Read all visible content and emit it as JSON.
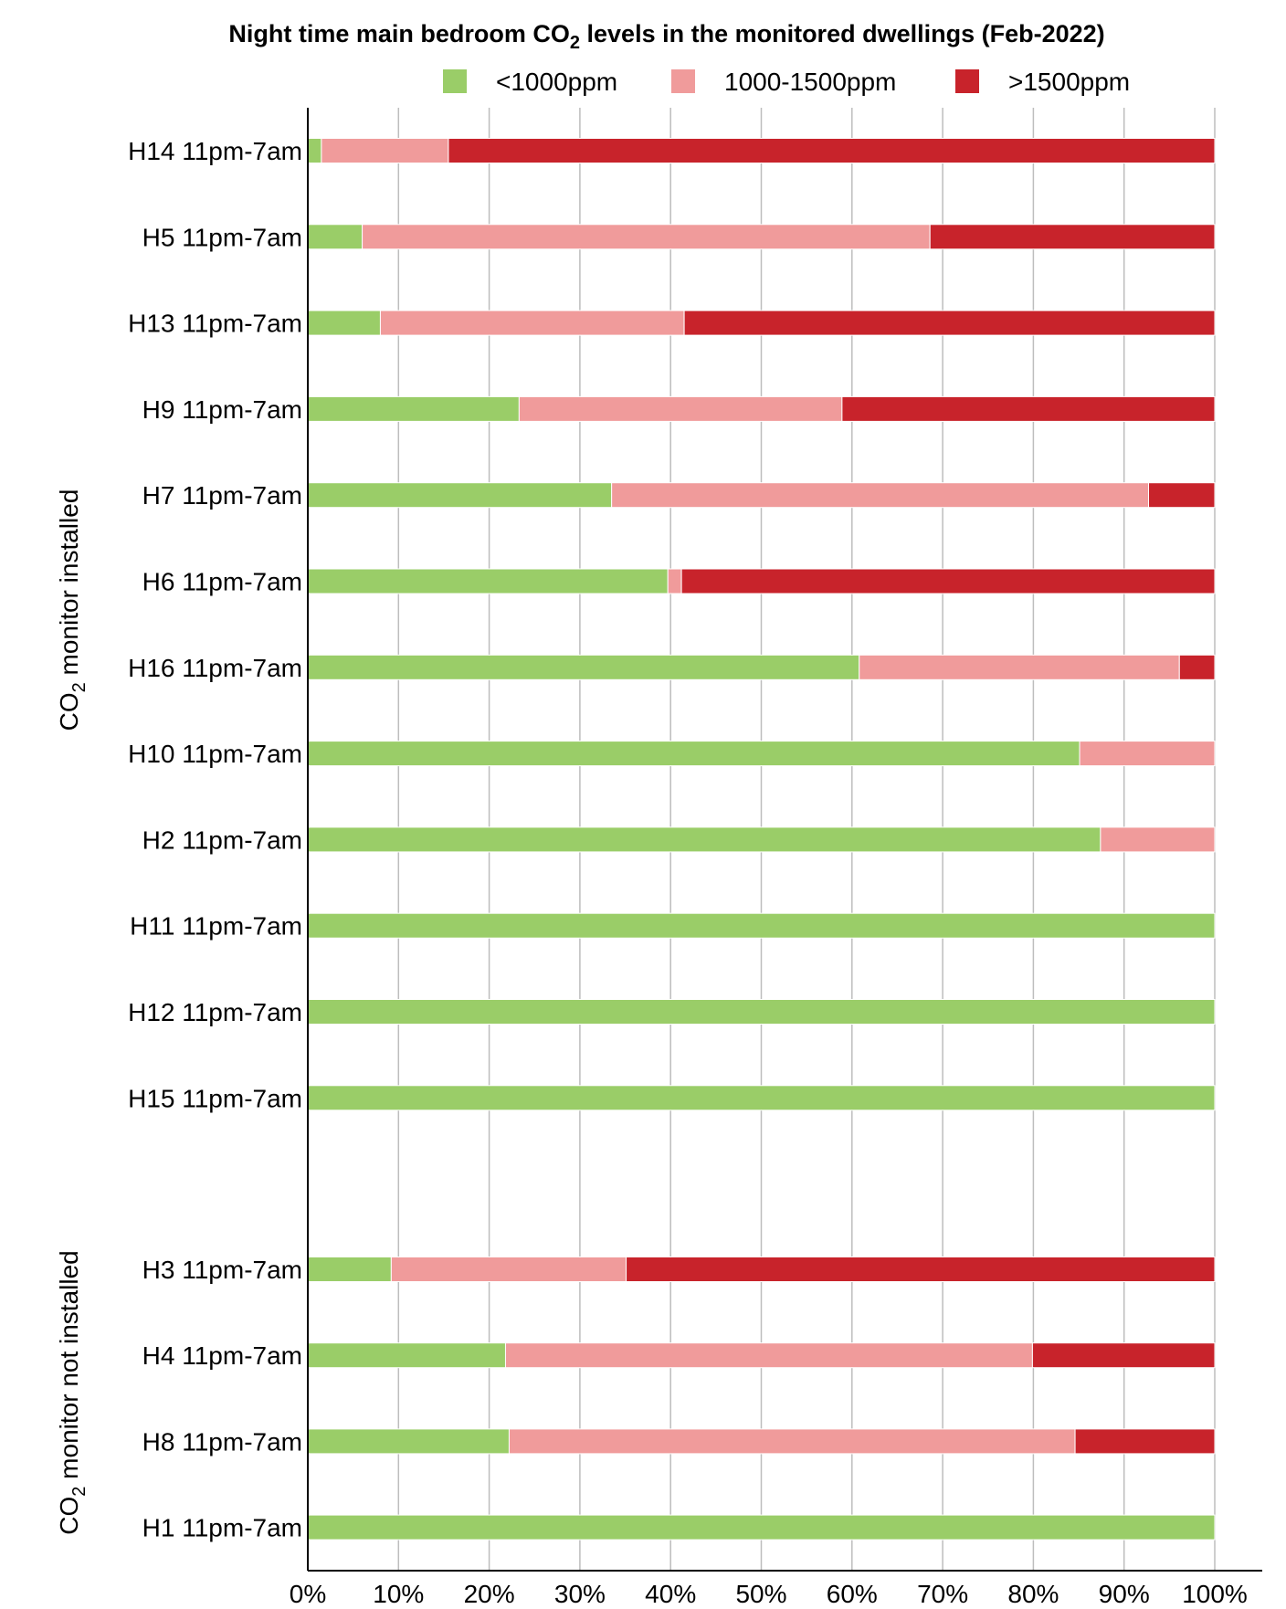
{
  "chart_data": {
    "type": "bar",
    "orientation": "horizontal",
    "stacked": true,
    "title": {
      "text_before": "Night time main bedroom CO",
      "subscript": "2",
      "text_after": " levels in the monitored dwellings (Feb-2022)"
    },
    "xlabel": "",
    "ylabel": "",
    "xlim": [
      0,
      100
    ],
    "x_ticks": [
      "0%",
      "10%",
      "20%",
      "30%",
      "40%",
      "50%",
      "60%",
      "70%",
      "80%",
      "90%",
      "100%"
    ],
    "grid": "vertical",
    "legend_position": "top",
    "series": [
      {
        "name": "<1000ppm",
        "color": "#9ACD68",
        "values": [
          1.5,
          6,
          8,
          23.3,
          33.5,
          39.7,
          60.8,
          85.1,
          87.4,
          100,
          100,
          100,
          9.2,
          21.8,
          22.2,
          100
        ]
      },
      {
        "name": "1000-1500ppm",
        "color": "#F09B9B",
        "values": [
          14,
          62.6,
          33.5,
          35.6,
          59.2,
          1.5,
          35.3,
          14.9,
          12.6,
          0,
          0,
          0,
          25.9,
          58.1,
          62.4,
          0
        ]
      },
      {
        "name": ">1500ppm",
        "color": "#C8232B",
        "values": [
          84.5,
          31.4,
          58.5,
          41.1,
          7.3,
          58.8,
          3.9,
          0,
          0,
          0,
          0,
          0,
          64.9,
          20.1,
          15.4,
          0
        ]
      }
    ],
    "categories": [
      "H14 11pm-7am",
      "H5 11pm-7am",
      "H13 11pm-7am",
      "H9 11pm-7am",
      "H7 11pm-7am",
      "H6 11pm-7am",
      "H16 11pm-7am",
      "H10 11pm-7am",
      "H2 11pm-7am",
      "H11 11pm-7am",
      "H12 11pm-7am",
      "H15 11pm-7am",
      "H3 11pm-7am",
      "H4 11pm-7am",
      "H8 11pm-7am",
      "H1 11pm-7am"
    ],
    "groups": [
      {
        "label_before": "CO",
        "label_sub": "2",
        "label_after": " monitor installed",
        "count": 12
      },
      {
        "label_before": "CO",
        "label_sub": "2",
        "label_after": " monitor not installed",
        "count": 4
      }
    ]
  }
}
